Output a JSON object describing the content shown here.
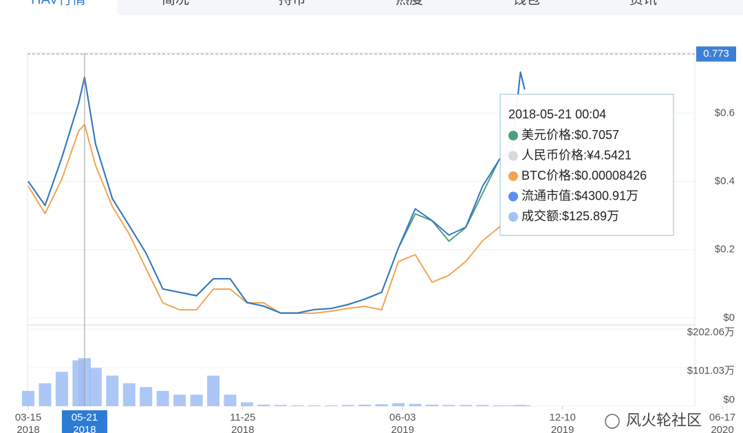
{
  "tabs": [
    "HAV行情",
    "简况",
    "持币",
    "热度",
    "钱包",
    "资讯"
  ],
  "chart_data": {
    "type": "line",
    "x": [
      "2018-03-15",
      "2018-04-04",
      "2018-04-24",
      "2018-05-14",
      "2018-05-21",
      "2018-06-03",
      "2018-06-23",
      "2018-07-13",
      "2018-08-02",
      "2018-08-22",
      "2018-09-11",
      "2018-10-01",
      "2018-10-21",
      "2018-11-10",
      "2018-11-30",
      "2018-12-20",
      "2019-01-09",
      "2019-01-29",
      "2019-02-18",
      "2019-03-10",
      "2019-03-30",
      "2019-04-19",
      "2019-05-09",
      "2019-05-29",
      "2019-06-18",
      "2019-07-08",
      "2019-07-28",
      "2019-08-17",
      "2019-09-06",
      "2019-09-26",
      "2019-10-11",
      "2019-10-21",
      "2019-10-26"
    ],
    "xlim": [
      "2018-03-15",
      "2020-06-17"
    ],
    "xticks": [
      {
        "value": "2018-03-15",
        "label": [
          "03-15",
          "2018"
        ]
      },
      {
        "value": "2018-11-25",
        "label": [
          "11-25",
          "2018"
        ]
      },
      {
        "value": "2019-06-03",
        "label": [
          "06-03",
          "2019"
        ]
      },
      {
        "value": "2019-12-10",
        "label": [
          "12-10",
          "2019"
        ]
      },
      {
        "value": "2020-06-17",
        "label": [
          "06-17",
          "2020"
        ]
      }
    ],
    "ylim": [
      0,
      0.78
    ],
    "yticks": [
      {
        "value": 0,
        "label": "$0"
      },
      {
        "value": 0.2,
        "label": "$0.2"
      },
      {
        "value": 0.4,
        "label": "$0.4"
      },
      {
        "value": 0.6,
        "label": "$0.6"
      }
    ],
    "y2lim": [
      0,
      0.000116
    ],
    "y3lim": [
      0,
      4754
    ],
    "grid": true,
    "series": [
      {
        "color": "#4e9e7c",
        "values": [
          0.4,
          0.33,
          0.47,
          0.63,
          0.7057,
          0.51,
          0.35,
          0.27,
          0.19,
          0.085,
          0.075,
          0.065,
          0.115,
          0.115,
          0.045,
          0.035,
          0.015,
          0.015,
          0.025,
          0.028,
          0.04,
          0.055,
          0.075,
          0.205,
          0.305,
          0.285,
          0.225,
          0.265,
          0.365,
          0.465,
          0.49,
          0.72,
          0.67
        ]
      },
      {
        "color": "#f3a44f",
        "axis": "y2",
        "values": [
          5.75e-05,
          4.55e-05,
          6.05e-05,
          8.15e-05,
          8.426e-05,
          6.65e-05,
          4.86e-05,
          3.66e-05,
          2.16e-05,
          6.6e-06,
          3.6e-06,
          3.6e-06,
          1.26e-05,
          1.26e-05,
          6.6e-06,
          6.6e-06,
          2.1e-06,
          2.1e-06,
          2.1e-06,
          3e-06,
          4.2e-06,
          5.1e-06,
          3.6e-06,
          2.46e-05,
          2.76e-05,
          1.56e-05,
          1.86e-05,
          2.46e-05,
          3.36e-05,
          3.96e-05,
          4.26e-05,
          4.86e-05,
          4.26e-05
        ]
      },
      {
        "color": "#3577c2",
        "axis": "y3",
        "values": [
          2440,
          2010,
          2860,
          3840,
          4300.91,
          3110,
          2130,
          1650,
          1160,
          520,
          460,
          400,
          700,
          700,
          280,
          210,
          90,
          90,
          150,
          170,
          240,
          340,
          460,
          1250,
          1950,
          1740,
          1480,
          1620,
          2350,
          2830,
          2990,
          4390,
          4080
        ]
      }
    ],
    "volume": {
      "color": "#9dbdf5",
      "ylim": [
        0,
        202.06
      ],
      "yticks": [
        {
          "value": 0,
          "label": "$0"
        },
        {
          "value": 101.03,
          "label": "$101.03万"
        },
        {
          "value": 202.06,
          "label": "$202.06万"
        }
      ],
      "values": [
        40,
        60,
        90,
        120,
        125.89,
        100,
        80,
        60,
        50,
        40,
        30,
        30,
        80,
        30,
        10,
        4,
        3,
        2,
        2,
        2,
        3,
        4,
        5,
        8,
        6,
        4,
        3,
        3,
        3,
        2,
        2,
        3,
        2
      ]
    },
    "current": {
      "value": 0.773,
      "label": "0.773"
    },
    "crosshair": {
      "x": "2018-05-21",
      "label": [
        "05-21",
        "2018"
      ]
    },
    "tooltip": {
      "title": "2018-05-21 00:04",
      "items": [
        {
          "color": "#4e9e7c",
          "text": "美元价格:$0.7057"
        },
        {
          "color": "#d9d9d9",
          "text": "人民币价格:¥4.5421"
        },
        {
          "color": "#f3a44f",
          "text": "BTC价格:$0.00008426"
        },
        {
          "color": "#5b8ff0",
          "text": "流通市值:$4300.91万"
        },
        {
          "color": "#a3c2f5",
          "text": "成交额:$125.89万"
        }
      ]
    }
  },
  "watermark": "风火轮社区"
}
